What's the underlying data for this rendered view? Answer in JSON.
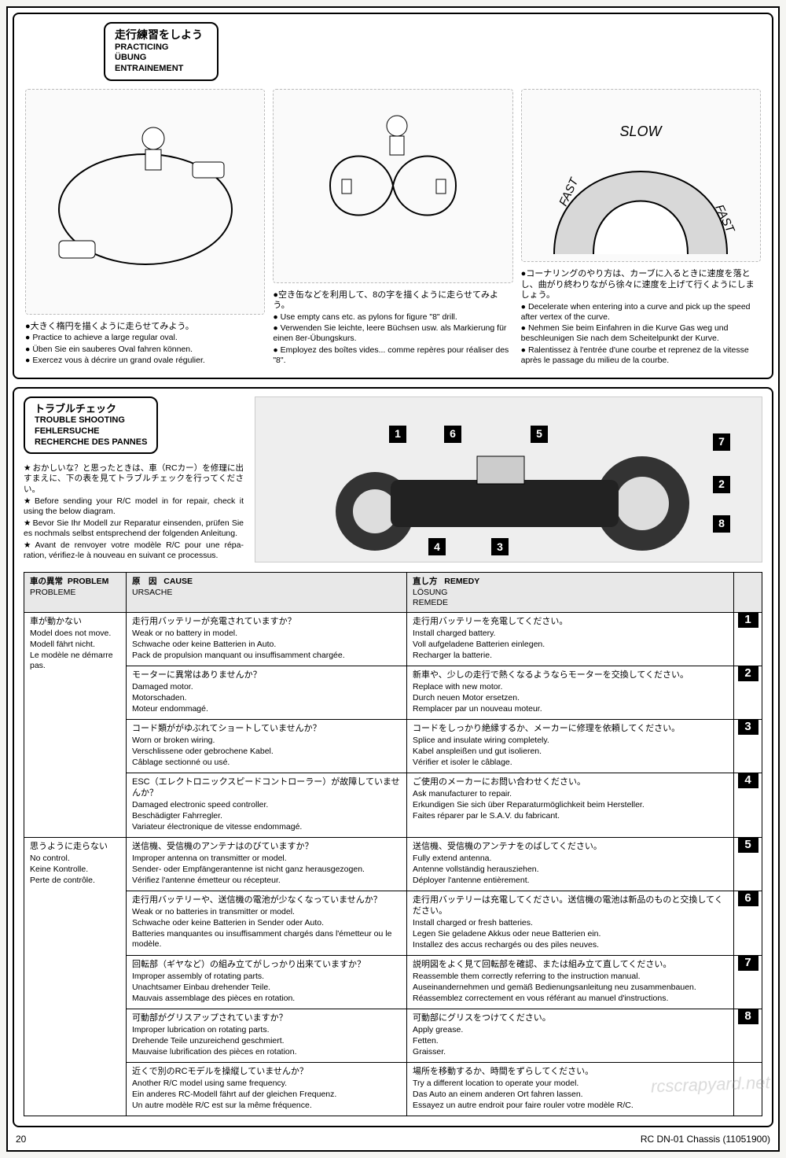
{
  "practicing": {
    "heading_jp": "走行練習をしよう",
    "heading_en": "PRACTICING",
    "heading_de": "ÜBUNG",
    "heading_fr": "ENTRAINEMENT",
    "col1": {
      "jp": "●大きく楕円を描くように走らせてみよう。",
      "en": "Practice to achieve a large regular oval.",
      "de": "Üben Sie ein sauberes Oval fahren können.",
      "fr": "Exercez vous à décrire un grand ovale régulier."
    },
    "col2": {
      "jp": "●空き缶などを利用して、8の字を描くように走らせてみよう。",
      "en": "Use empty cans etc. as pylons for figure \"8\" drill.",
      "de": "Verwenden Sie leichte, leere Büchsen usw. als Markierung für einen 8er-Übungskurs.",
      "fr": "Employez des boîtes vides... comme repères pour réaliser des \"8\"."
    },
    "col3": {
      "jp": "●コーナリングのやり方は、カーブに入るときに速度を落とし、曲がり終わりながら徐々に速度を上げて行くようにしましょう。",
      "en": "Decelerate when entering into a curve and pick up the speed after vertex of the curve.",
      "de": "Nehmen Sie beim Einfahren in die Kurve Gas weg und beschleunigen Sie nach dem Scheitelpunkt der Kurve.",
      "fr": "Ralentissez à l'entrée d'une courbe et reprenez de la vitesse après le passage du milieu de la courbe.",
      "slow": "SLOW",
      "fast": "FAST"
    }
  },
  "trouble": {
    "title_jp": "トラブルチェック",
    "title_en": "TROUBLE SHOOTING",
    "title_de": "FEHLERSUCHE",
    "title_fr": "RECHERCHE DES PANNES",
    "intro_jp": "おかしいな？と思ったときは、車（RCカー）を修理に出すまえに、下の表を見てトラブルチェックを行ってください。",
    "intro_en": "Before sending your R/C model in for repair, check it using the below diagram.",
    "intro_de": "Bevor Sie Ihr Modell zur Reparatur einsenden, prüfen Sie es nochmals selbst entsprechend der folgenden Anleitung.",
    "intro_fr": "Avant de renvoyer votre modèle R/C pour une répa-ration, vérifiez-le à nouveau en suivant ce processus.",
    "header": {
      "problem_jp": "車の異常",
      "problem_en": "PROBLEM",
      "problem_fr": "PROBLEME",
      "cause_jp": "原　因",
      "cause_en": "CAUSE",
      "cause_de": "URSACHE",
      "remedy_jp": "直し方",
      "remedy_en": "REMEDY",
      "remedy_de": "LÖSUNG",
      "remedy_fr": "REMEDE"
    },
    "groups": [
      {
        "problem_jp": "車が動かない",
        "problem_en": "Model does not move.",
        "problem_de": "Modell fährt nicht.",
        "problem_fr": "Le modèle ne démarre pas.",
        "rows": [
          {
            "num": "1",
            "cause_jp": "走行用バッテリーが充電されていますか？",
            "cause_en": "Weak or no battery in model.",
            "cause_de": "Schwache oder keine Batterien in Auto.",
            "cause_fr": "Pack de propulsion manquant ou insuffisamment chargée.",
            "remedy_jp": "走行用バッテリーを充電してください。",
            "remedy_en": "Install charged battery.",
            "remedy_de": "Voll aufgeladene Batterien einlegen.",
            "remedy_fr": "Recharger la batterie."
          },
          {
            "num": "2",
            "cause_jp": "モーターに異常はありませんか？",
            "cause_en": "Damaged motor.",
            "cause_de": "Motorschaden.",
            "cause_fr": "Moteur endommagé.",
            "remedy_jp": "新車や、少しの走行で熱くなるようならモーターを交換してください。",
            "remedy_en": "Replace with new motor.",
            "remedy_de": "Durch neuen Motor ersetzen.",
            "remedy_fr": "Remplacer par un nouveau moteur."
          },
          {
            "num": "3",
            "cause_jp": "コード類ががゆぶれてショートしていませんか？",
            "cause_en": "Worn or broken wiring.",
            "cause_de": "Verschlissene oder gebrochene Kabel.",
            "cause_fr": "Câblage sectionné ou usé.",
            "remedy_jp": "コードをしっかり絶縁するか、メーカーに修理を依頼してください。",
            "remedy_en": "Splice and insulate wiring completely.",
            "remedy_de": "Kabel anspleißen und gut isolieren.",
            "remedy_fr": "Vérifier et isoler le câblage."
          },
          {
            "num": "4",
            "cause_jp": "ESC（エレクトロニックスピードコントローラー）が故障していませんか？",
            "cause_en": "Damaged electronic speed controller.",
            "cause_de": "Beschädigter Fahrregler.",
            "cause_fr": "Variateur électronique de vitesse endommagé.",
            "remedy_jp": "ご使用のメーカーにお問い合わせください。",
            "remedy_en": "Ask manufacturer to repair.",
            "remedy_de": "Erkundigen Sie sich über Reparaturmöglichkeit beim Hersteller.",
            "remedy_fr": "Faites réparer par le S.A.V. du fabricant."
          }
        ]
      },
      {
        "problem_jp": "思うように走らない",
        "problem_en": "No control.",
        "problem_de": "Keine Kontrolle.",
        "problem_fr": "Perte de contrôle.",
        "rows": [
          {
            "num": "5",
            "cause_jp": "送信機、受信機のアンテナはのびていますか？",
            "cause_en": "Improper antenna on transmitter or model.",
            "cause_de": "Sender- oder Empfängerantenne ist nicht ganz herausgezogen.",
            "cause_fr": "Vérifiez l'antenne émetteur ou récepteur.",
            "remedy_jp": "送信機、受信機のアンテナをのばしてください。",
            "remedy_en": "Fully extend antenna.",
            "remedy_de": "Antenne vollständig herausziehen.",
            "remedy_fr": "Déployer l'antenne entièrement."
          },
          {
            "num": "6",
            "cause_jp": "走行用バッテリーや、送信機の電池が少なくなっていませんか？",
            "cause_en": "Weak or no batteries in transmitter or model.",
            "cause_de": "Schwache oder keine Batterien in Sender oder Auto.",
            "cause_fr": "Batteries manquantes ou insuffisamment chargés dans l'émetteur ou le modèle.",
            "remedy_jp": "走行用バッテリーは充電してください。送信機の電池は新品のものと交換してください。",
            "remedy_en": "Install charged or fresh batteries.",
            "remedy_de": "Legen Sie geladene Akkus oder neue Batterien ein.",
            "remedy_fr": "Installez des accus rechargés ou des piles neuves."
          },
          {
            "num": "7",
            "cause_jp": "回転部（ギヤなど）の組み立てがしっかり出来ていますか？",
            "cause_en": "Improper assembly of rotating parts.",
            "cause_de": "Unachtsamer Einbau drehender Teile.",
            "cause_fr": "Mauvais assemblage des pièces en rotation.",
            "remedy_jp": "説明図をよく見て回転部を確認、または組み立て直してください。",
            "remedy_en": "Reassemble them correctly referring to the instruction manual.",
            "remedy_de": "Auseinandernehmen und gemäß Bedienungsanleitung neu zusammenbauen.",
            "remedy_fr": "Réassemblez correctement en vous référant au manuel d'instructions."
          },
          {
            "num": "8",
            "cause_jp": "可動部がグリスアップされていますか？",
            "cause_en": "Improper lubrication on rotating parts.",
            "cause_de": "Drehende Teile unzureichend geschmiert.",
            "cause_fr": "Mauvaise lubrification des pièces en rotation.",
            "remedy_jp": "可動部にグリスをつけてください。",
            "remedy_en": "Apply grease.",
            "remedy_de": "Fetten.",
            "remedy_fr": "Graisser."
          },
          {
            "num": "",
            "cause_jp": "近くで別のRCモデルを操縦していませんか？",
            "cause_en": "Another R/C model using same frequency.",
            "cause_de": "Ein anderes RC-Modell fährt auf der gleichen Frequenz.",
            "cause_fr": "Un autre modèle R/C est sur la même fréquence.",
            "remedy_jp": "場所を移動するか、時間をずらしてください。",
            "remedy_en": "Try a different location to operate your model.",
            "remedy_de": "Das Auto an einem anderen Ort fahren lassen.",
            "remedy_fr": "Essayez un autre endroit pour faire rouler votre modèle R/C."
          }
        ]
      }
    ]
  },
  "footer": {
    "page": "20",
    "model": "RC DN-01 Chassis (11051900)"
  },
  "watermark": "rcscrapyard.net",
  "callouts": [
    "1",
    "6",
    "5",
    "7",
    "2",
    "8",
    "4",
    "3"
  ]
}
